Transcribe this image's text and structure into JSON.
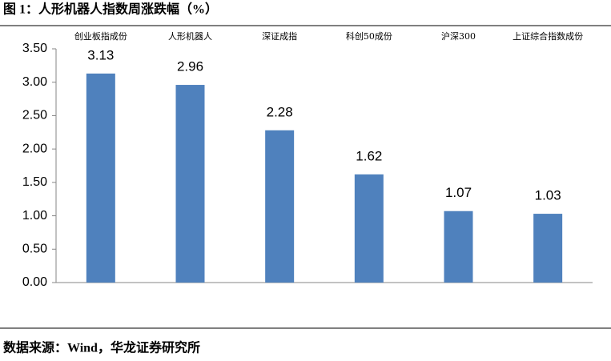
{
  "chart_data": {
    "type": "bar",
    "title": "图 1：人形机器人指数周涨跌幅（%）",
    "source": "数据来源：Wind，华龙证券研究所",
    "categories": [
      "创业板指成份",
      "人形机器人",
      "深证成指",
      "科创50成份",
      "沪深300",
      "上证综合指数成份"
    ],
    "values": [
      3.13,
      2.96,
      2.28,
      1.62,
      1.07,
      1.03
    ],
    "color": "#4f81bd",
    "ylim": [
      0,
      3.5
    ],
    "yticks": [
      {
        "value": 0,
        "label": "0.00"
      },
      {
        "value": 0.5,
        "label": "0.50"
      },
      {
        "value": 1,
        "label": "1.00"
      },
      {
        "value": 1.5,
        "label": "1.50"
      },
      {
        "value": 2,
        "label": "2.00"
      },
      {
        "value": 2.5,
        "label": "2.50"
      },
      {
        "value": 3,
        "label": "3.00"
      },
      {
        "value": 3.5,
        "label": "3.50"
      }
    ],
    "grid": false
  }
}
